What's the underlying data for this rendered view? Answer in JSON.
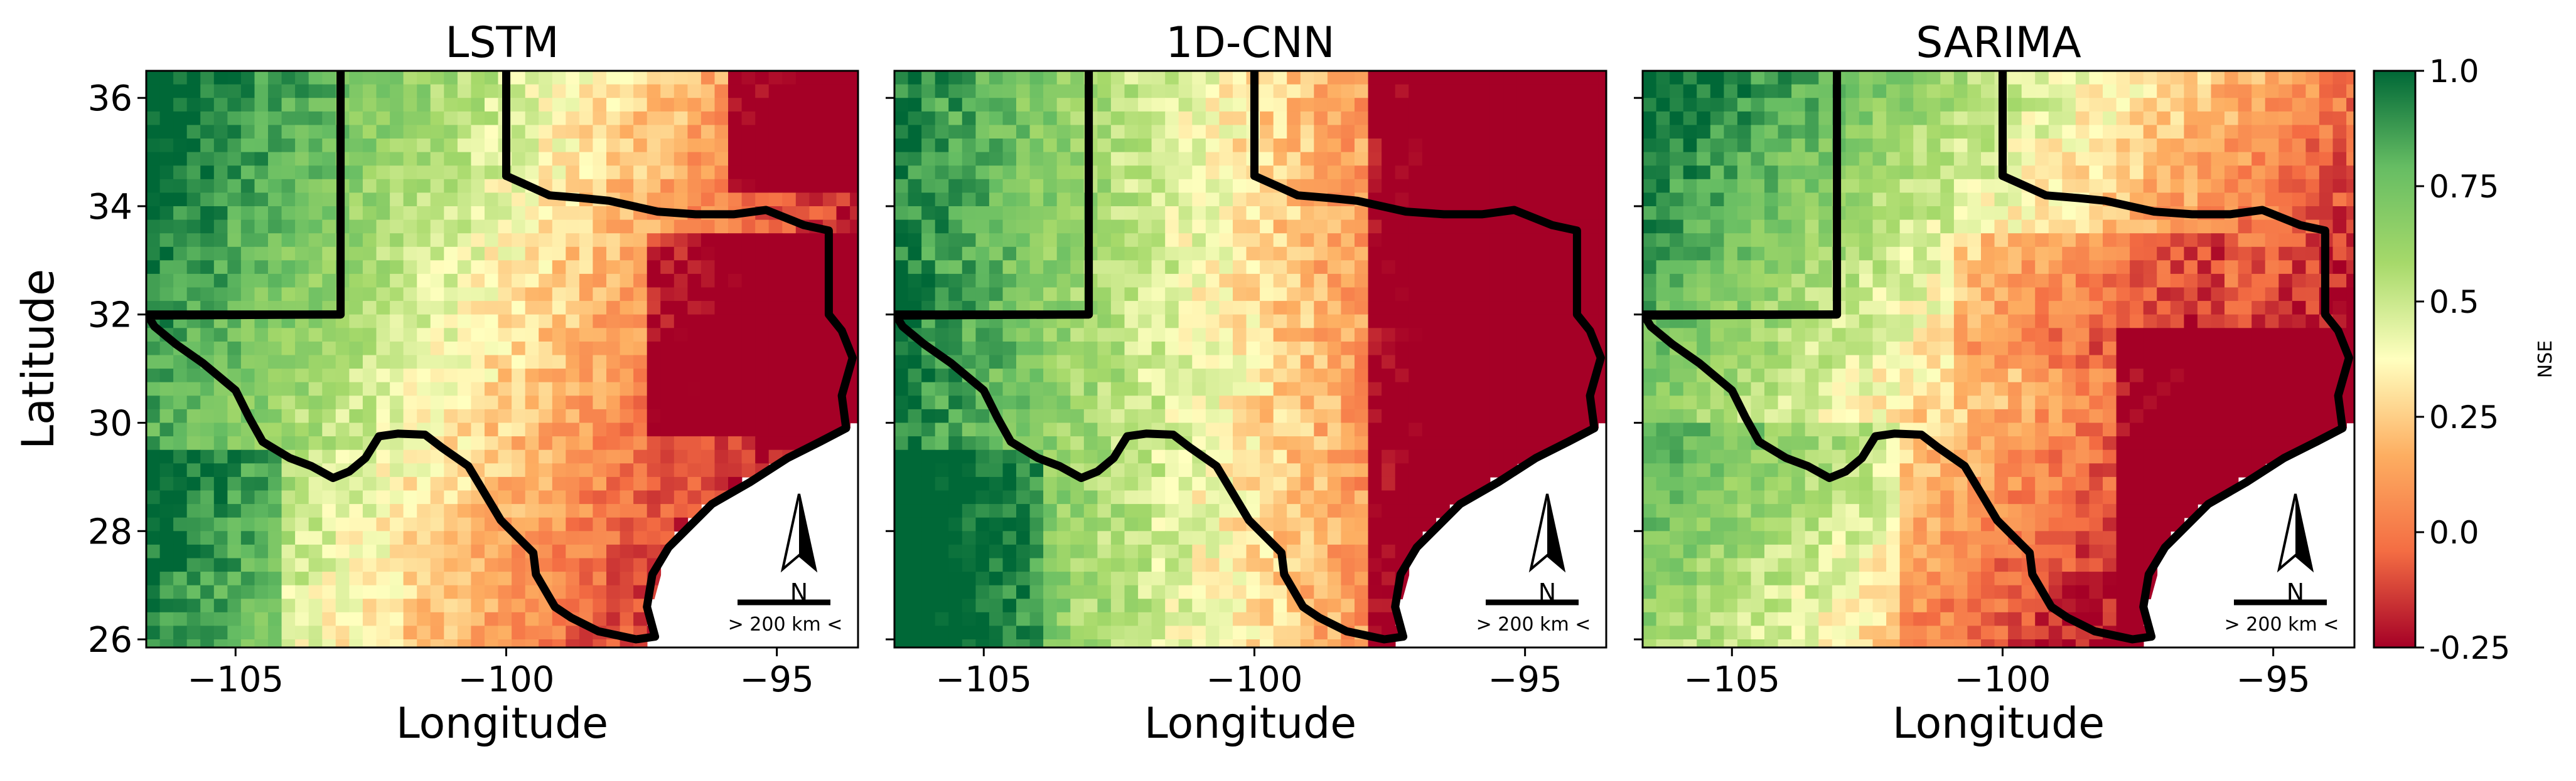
{
  "figure": {
    "panels": [
      {
        "title": "LSTM"
      },
      {
        "title": "1D-CNN"
      },
      {
        "title": "SARIMA"
      }
    ],
    "xlabel": "Longitude",
    "ylabel": "Latitude",
    "x_ticks": [
      "−105",
      "−100",
      "−95"
    ],
    "y_ticks": [
      "36",
      "34",
      "32",
      "30",
      "28",
      "26"
    ],
    "north_label": "N",
    "scale_label": "> 200 km <",
    "colorbar": {
      "label": "NSE",
      "ticks": [
        "1.0",
        "0.75",
        "0.5",
        "0.25",
        "0.0",
        "-0.25"
      ],
      "range": [
        -0.25,
        1.0
      ],
      "colormap": "RdYlGn",
      "colors": [
        "#a50026",
        "#f46d43",
        "#fdae61",
        "#ffffbf",
        "#a6d96a",
        "#66bd63",
        "#006837"
      ]
    },
    "extent": {
      "lon": [
        -106.65,
        -93.5
      ],
      "lat": [
        25.85,
        36.5
      ]
    },
    "map_style": {
      "boundary_color": "#000000",
      "water_color": "#ffffff"
    }
  }
}
